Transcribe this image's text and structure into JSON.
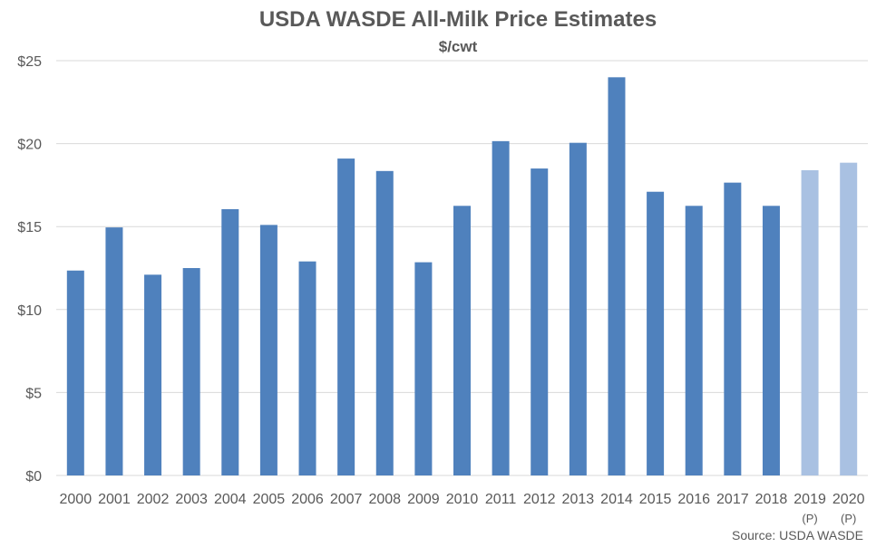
{
  "chart_data": {
    "type": "bar",
    "title": "USDA WASDE All-Milk Price Estimates",
    "subtitle": "$/cwt",
    "source": "Source: USDA WASDE",
    "categories": [
      "2000",
      "2001",
      "2002",
      "2003",
      "2004",
      "2005",
      "2006",
      "2007",
      "2008",
      "2009",
      "2010",
      "2011",
      "2012",
      "2013",
      "2014",
      "2015",
      "2016",
      "2017",
      "2018",
      "2019",
      "2020"
    ],
    "category_notes": [
      "",
      "",
      "",
      "",
      "",
      "",
      "",
      "",
      "",
      "",
      "",
      "",
      "",
      "",
      "",
      "",
      "",
      "",
      "",
      "(P)",
      "(P)"
    ],
    "values": [
      12.35,
      14.95,
      12.1,
      12.5,
      16.05,
      15.1,
      12.9,
      19.1,
      18.35,
      12.85,
      16.25,
      20.15,
      18.5,
      20.05,
      24.0,
      17.1,
      16.25,
      17.65,
      16.25,
      18.4,
      18.85
    ],
    "projected": [
      false,
      false,
      false,
      false,
      false,
      false,
      false,
      false,
      false,
      false,
      false,
      false,
      false,
      false,
      false,
      false,
      false,
      false,
      false,
      true,
      true
    ],
    "ylim": [
      0,
      25
    ],
    "yticks": [
      0,
      5,
      10,
      15,
      20,
      25
    ],
    "ytick_labels": [
      "$0",
      "$5",
      "$10",
      "$15",
      "$20",
      "$25"
    ],
    "grid": true,
    "colors": {
      "actual": "#4f81bd",
      "projected": "#a9c1e2",
      "grid": "#d9d9d9"
    }
  }
}
